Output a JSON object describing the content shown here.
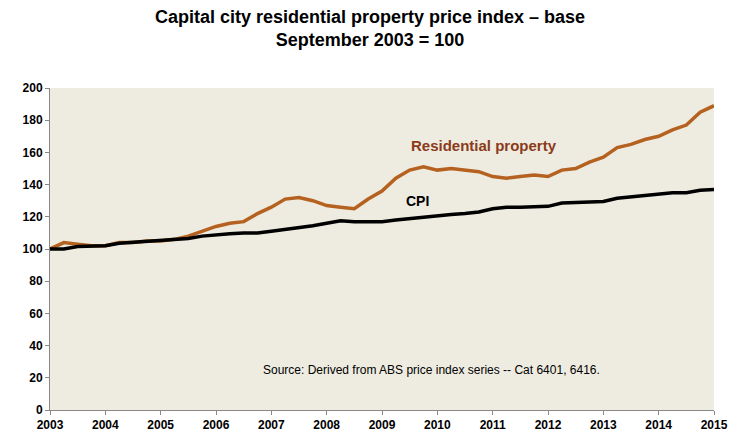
{
  "chart_data": {
    "type": "line",
    "title": [
      "Capital city residential property price index – base",
      "September 2003 = 100"
    ],
    "x": [
      2003,
      2003.25,
      2003.5,
      2003.75,
      2004,
      2004.25,
      2004.5,
      2004.75,
      2005,
      2005.25,
      2005.5,
      2005.75,
      2006,
      2006.25,
      2006.5,
      2006.75,
      2007,
      2007.25,
      2007.5,
      2007.75,
      2008,
      2008.25,
      2008.5,
      2008.75,
      2009,
      2009.25,
      2009.5,
      2009.75,
      2010,
      2010.25,
      2010.5,
      2010.75,
      2011,
      2011.25,
      2011.5,
      2011.75,
      2012,
      2012.25,
      2012.5,
      2012.75,
      2013,
      2013.25,
      2013.5,
      2013.75,
      2014,
      2014.25,
      2014.5,
      2014.75,
      2015
    ],
    "series": [
      {
        "name": "Residential property",
        "color": "#b5611f",
        "values": [
          100,
          104,
          103,
          102,
          102,
          104,
          104,
          105,
          105,
          106,
          108,
          111,
          114,
          116,
          117,
          122,
          126,
          131,
          132,
          130,
          127,
          126,
          125,
          131,
          136,
          144,
          149,
          151,
          149,
          150,
          149,
          148,
          145,
          144,
          145,
          146,
          145,
          149,
          150,
          154,
          157,
          163,
          165,
          168,
          170,
          174,
          177,
          185,
          189
        ]
      },
      {
        "name": "CPI",
        "color": "#000000",
        "values": [
          100,
          100,
          101.5,
          102,
          102,
          103.5,
          104,
          104.5,
          105,
          105.5,
          106.5,
          108,
          109,
          109.5,
          110,
          110,
          111,
          112,
          113,
          114.5,
          116,
          117.5,
          117,
          117,
          117,
          118,
          119,
          120,
          121,
          121.5,
          122,
          123,
          125,
          126,
          126,
          126,
          126.5,
          128.5,
          129,
          129,
          129.5,
          131.5,
          132.5,
          133.5,
          134.5,
          135,
          135,
          136.5,
          137
        ]
      }
    ],
    "annotations": [
      {
        "text": "Residential property",
        "x": 2010.85,
        "y": 164,
        "color": "#8b3a1a"
      },
      {
        "text": "CPI",
        "x": 2009.65,
        "y": 130,
        "color": "#000000"
      },
      {
        "text": "Source: Derived from ABS price index series -- Cat 6401, 6416.",
        "x": 2009.9,
        "y": 25,
        "color": "#000000"
      }
    ],
    "xlim": [
      2003,
      2015
    ],
    "xticks": [
      2003,
      2004,
      2005,
      2006,
      2007,
      2008,
      2009,
      2010,
      2011,
      2012,
      2013,
      2014,
      2015
    ],
    "ylim": [
      0,
      200
    ],
    "yticks": [
      0,
      20,
      40,
      60,
      80,
      100,
      120,
      140,
      160,
      180,
      200
    ],
    "grid": false
  }
}
